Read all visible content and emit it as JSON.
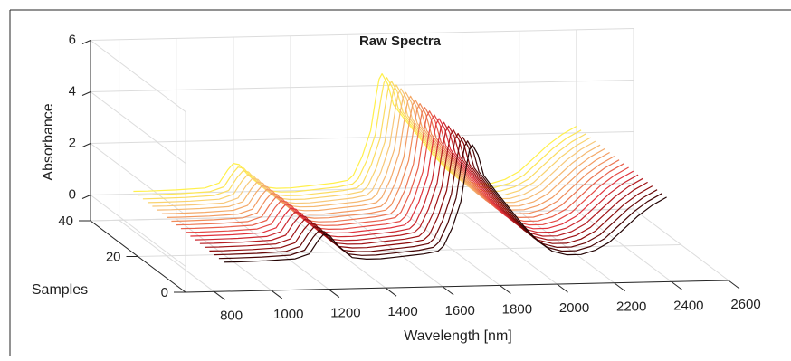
{
  "chart_data": {
    "type": "line",
    "plot_style": "3d-waterfall",
    "title": "Raw Spectra",
    "xlabel": "Wavelength [nm]",
    "ylabel": "Samples",
    "zlabel": "Absorbance",
    "xlim": [
      700,
      2600
    ],
    "ylim": [
      0,
      40
    ],
    "zlim": [
      -1,
      6
    ],
    "x_ticks": [
      "800",
      "1000",
      "1200",
      "1400",
      "1600",
      "1800",
      "2000",
      "2200",
      "2400",
      "2600"
    ],
    "y_ticks": [
      "0",
      "20",
      "40"
    ],
    "z_ticks": [
      "0",
      "2",
      "4",
      "6"
    ],
    "grid": true,
    "legend": "none",
    "colormap": [
      "#000000",
      "#8b0a0a",
      "#e0323c",
      "#f08c5a",
      "#f7c87a",
      "#fff04a"
    ],
    "series_count": 20,
    "series_sample_start": 2,
    "series_sample_step": 2,
    "base_spectrum": {
      "x": [
        850,
        900,
        1000,
        1100,
        1150,
        1180,
        1200,
        1220,
        1250,
        1300,
        1350,
        1400,
        1450,
        1500,
        1550,
        1600,
        1620,
        1650,
        1680,
        1700,
        1710,
        1720,
        1740,
        1760,
        1800,
        1850,
        1900,
        1950,
        2000,
        2050,
        2100,
        2150,
        2200,
        2250,
        2300,
        2350,
        2400
      ],
      "values": [
        0.05,
        0.05,
        0.07,
        0.12,
        0.3,
        0.8,
        1.05,
        1.0,
        0.6,
        0.12,
        0.05,
        0.05,
        0.1,
        0.15,
        0.2,
        0.3,
        0.5,
        1.2,
        2.2,
        3.6,
        4.2,
        4.4,
        4.0,
        3.2,
        2.6,
        1.9,
        1.2,
        0.6,
        0.2,
        0.05,
        0.05,
        0.2,
        0.5,
        1.0,
        1.5,
        1.9,
        2.2
      ]
    }
  }
}
